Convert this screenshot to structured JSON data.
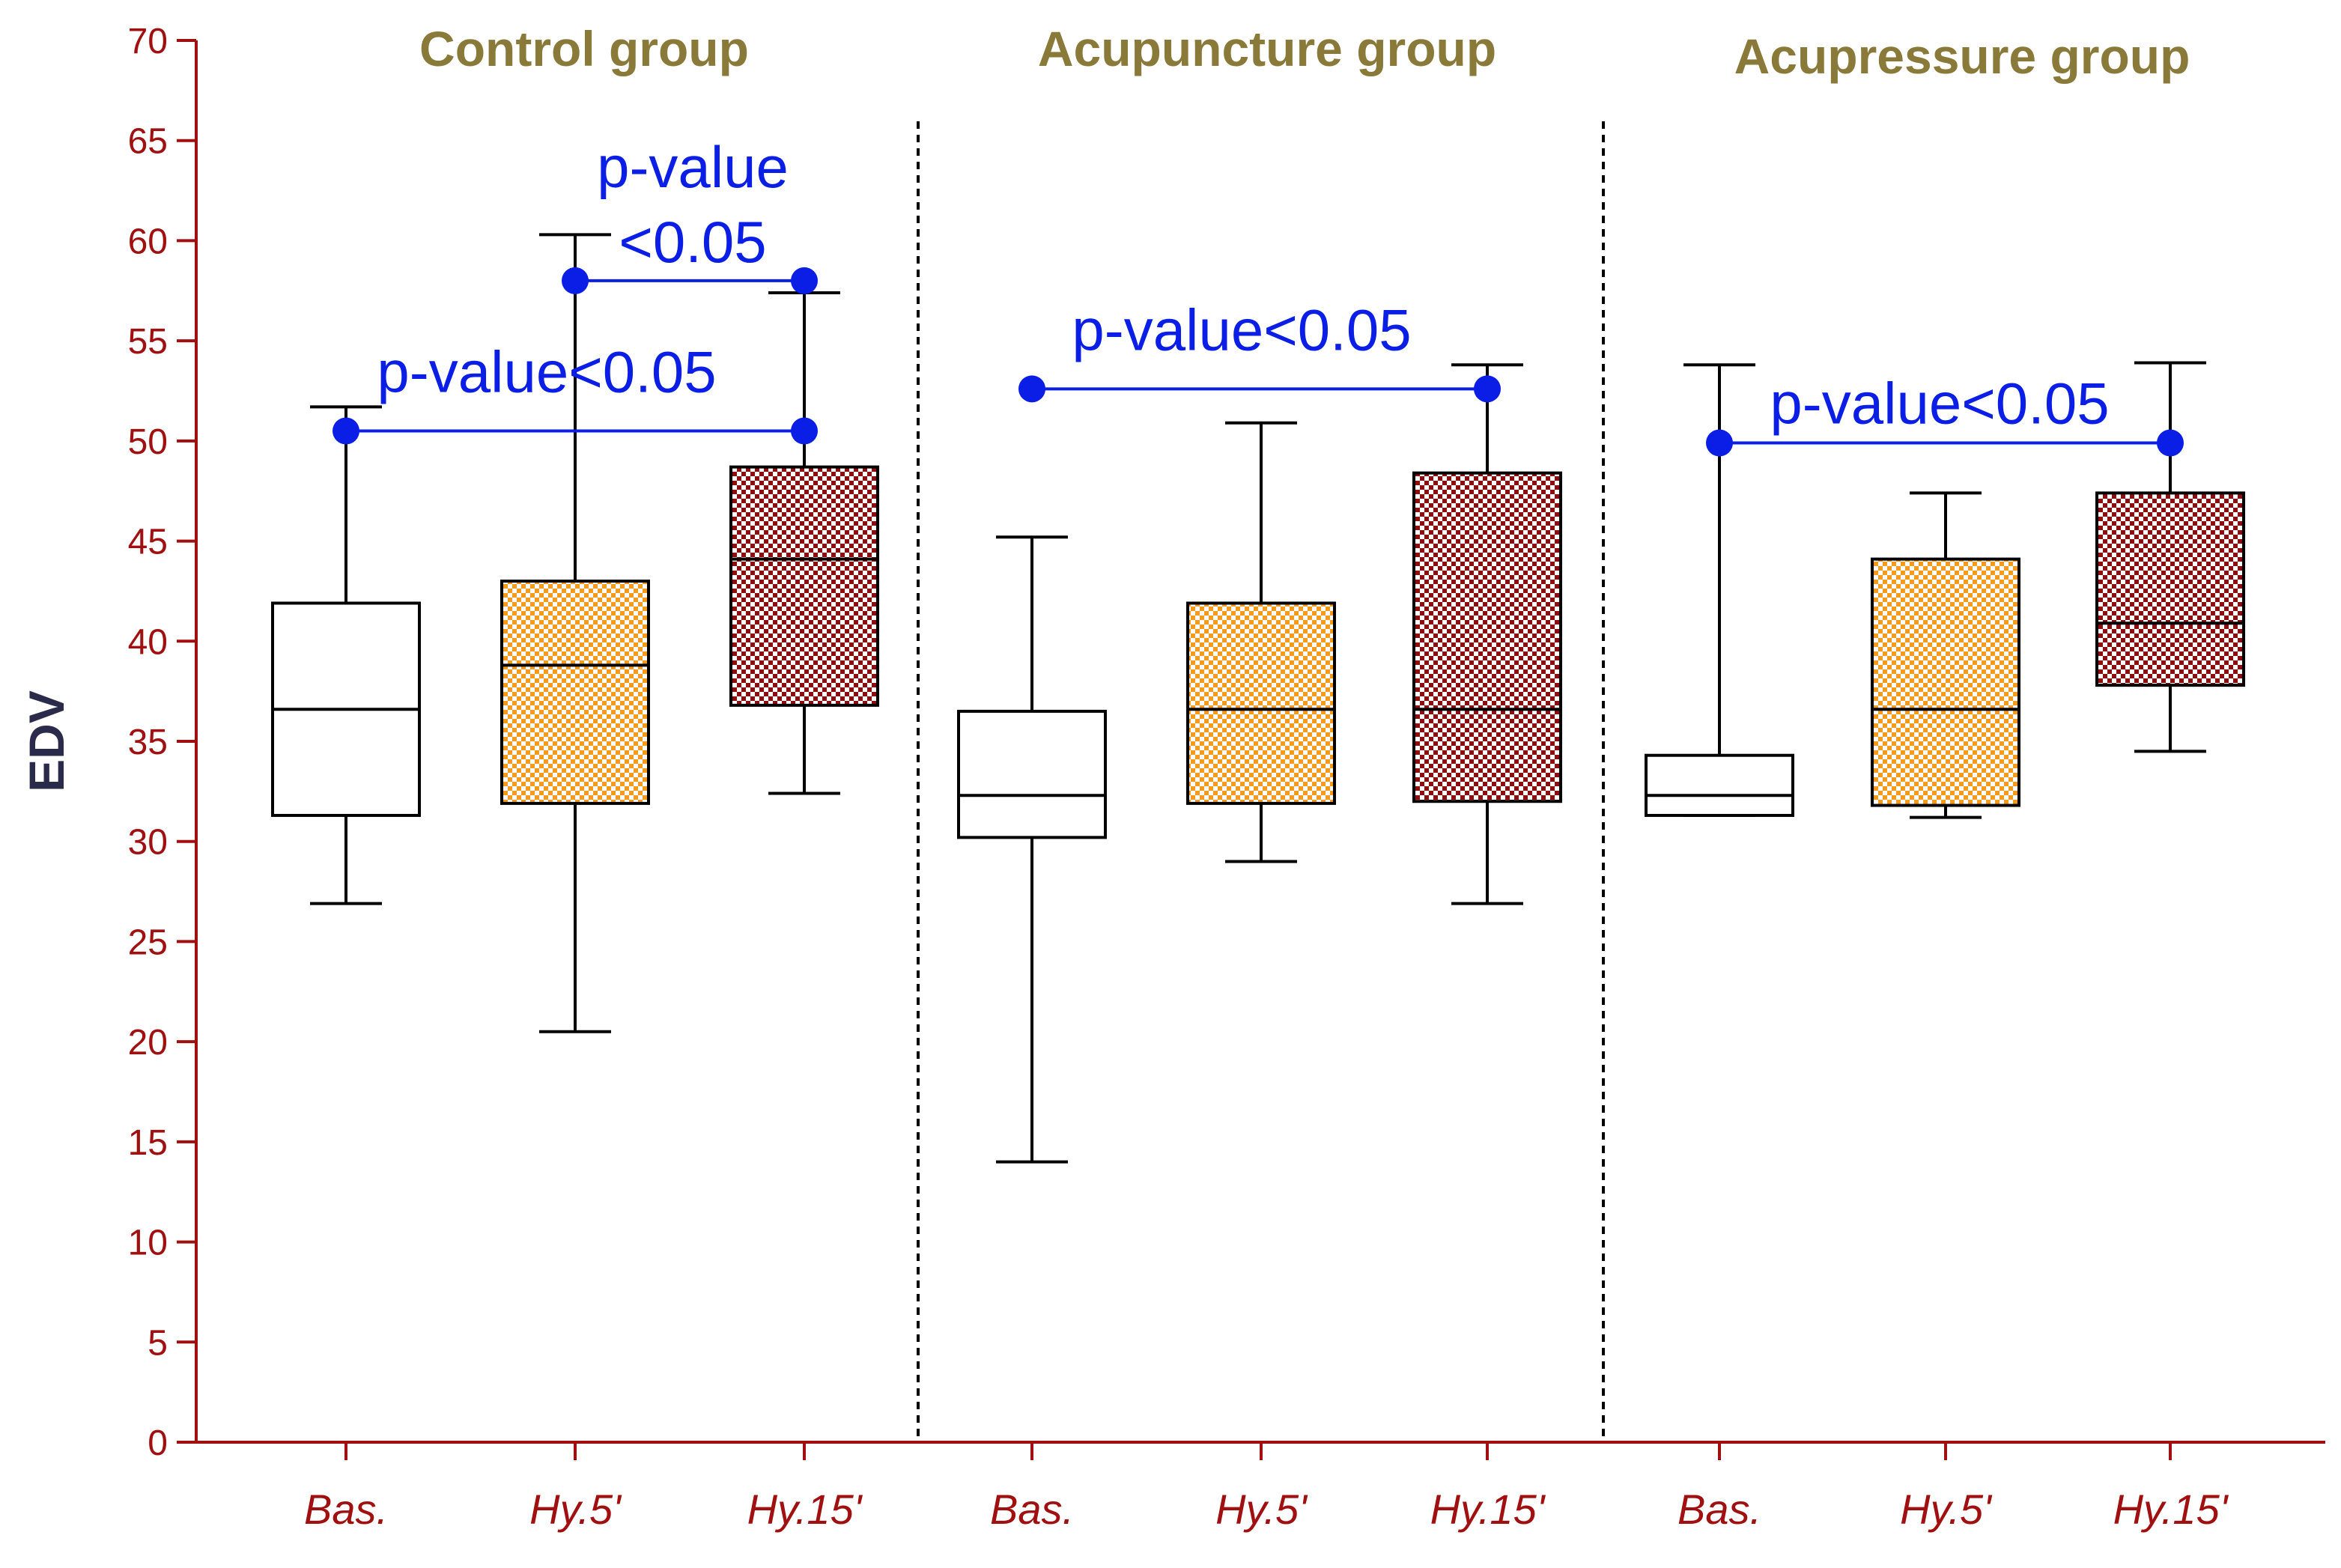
{
  "chart_data": {
    "type": "box",
    "ylabel": "EDV",
    "ylim": [
      0,
      70
    ],
    "yticks": [
      0,
      5,
      10,
      15,
      20,
      25,
      30,
      35,
      40,
      45,
      50,
      55,
      60,
      65,
      70
    ],
    "group_titles": [
      "Control group",
      "Acupuncture group",
      "Acupressure group"
    ],
    "boxes": [
      {
        "group": "Control group",
        "label": "Bas.",
        "fill": "white",
        "whisker_low": 26.9,
        "q1": 31.3,
        "median": 36.6,
        "q3": 41.9,
        "whisker_high": 51.7
      },
      {
        "group": "Control group",
        "label": "Hy.5'",
        "fill": "orange-check",
        "whisker_low": 20.5,
        "q1": 31.9,
        "median": 38.8,
        "q3": 43.0,
        "whisker_high": 60.3
      },
      {
        "group": "Control group",
        "label": "Hy.15'",
        "fill": "darkred-check",
        "whisker_low": 32.4,
        "q1": 36.8,
        "median": 44.1,
        "q3": 48.7,
        "whisker_high": 57.4
      },
      {
        "group": "Acupuncture group",
        "label": "Bas.",
        "fill": "white",
        "whisker_low": 14.0,
        "q1": 30.2,
        "median": 32.3,
        "q3": 36.5,
        "whisker_high": 45.2
      },
      {
        "group": "Acupuncture group",
        "label": "Hy.5'",
        "fill": "orange-check",
        "whisker_low": 29.0,
        "q1": 31.9,
        "median": 36.6,
        "q3": 41.9,
        "whisker_high": 50.9
      },
      {
        "group": "Acupuncture group",
        "label": "Hy.15'",
        "fill": "darkred-check",
        "whisker_low": 26.9,
        "q1": 32.0,
        "median": 36.6,
        "q3": 48.4,
        "whisker_high": 53.8
      },
      {
        "group": "Acupressure group",
        "label": "Bas.",
        "fill": "white",
        "whisker_low": 31.3,
        "q1": 31.3,
        "median": 32.3,
        "q3": 34.3,
        "whisker_high": 53.8
      },
      {
        "group": "Acupressure group",
        "label": "Hy.5'",
        "fill": "orange-check",
        "whisker_low": 31.2,
        "q1": 31.8,
        "median": 36.6,
        "q3": 44.1,
        "whisker_high": 47.4
      },
      {
        "group": "Acupressure group",
        "label": "Hy.15'",
        "fill": "darkred-check",
        "whisker_low": 34.5,
        "q1": 37.8,
        "median": 40.9,
        "q3": 47.4,
        "whisker_high": 53.9
      }
    ],
    "comparisons": [
      {
        "from_box": 0,
        "to_box": 2,
        "y": 50.5,
        "label": "p-value<0.05"
      },
      {
        "from_box": 1,
        "to_box": 2,
        "y": 58.0,
        "label_lines": [
          "p-value",
          "<0.05"
        ]
      },
      {
        "from_box": 3,
        "to_box": 5,
        "y": 52.6,
        "label": "p-value<0.05"
      },
      {
        "from_box": 6,
        "to_box": 8,
        "y": 49.9,
        "label": "p-value<0.05"
      }
    ],
    "group_separators_after_box": [
      2,
      5
    ]
  },
  "colors": {
    "axis": "#a01010",
    "tick_label": "#a01010",
    "x_label": "#a01010",
    "y_title": "#2a2a4a",
    "group_title": "#8a7a3a",
    "comparison": "#0a1ee6",
    "orange_check": "#f49a1e",
    "darkred_check": "#8c0f0f",
    "box_stroke": "#000000"
  }
}
